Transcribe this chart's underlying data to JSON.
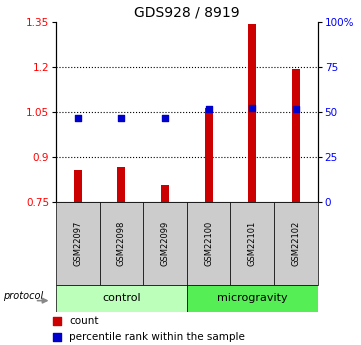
{
  "title": "GDS928 / 8919",
  "samples": [
    "GSM22097",
    "GSM22098",
    "GSM22099",
    "GSM22100",
    "GSM22101",
    "GSM22102"
  ],
  "groups": [
    "control",
    "control",
    "control",
    "microgravity",
    "microgravity",
    "microgravity"
  ],
  "bar_values": [
    0.855,
    0.865,
    0.805,
    1.065,
    1.345,
    1.195
  ],
  "dot_values": [
    1.03,
    1.03,
    1.03,
    1.06,
    1.065,
    1.06
  ],
  "ylim": [
    0.75,
    1.35
  ],
  "yticks_left": [
    0.75,
    0.9,
    1.05,
    1.2,
    1.35
  ],
  "yticks_right_values": [
    0,
    25,
    50,
    75,
    100
  ],
  "yticks_right_labels": [
    "0",
    "25",
    "50",
    "75",
    "100%"
  ],
  "bar_color": "#cc0000",
  "dot_color": "#0000cc",
  "control_color": "#bbffbb",
  "microgravity_color": "#55ee55",
  "label_bg_color": "#cccccc",
  "bar_width": 0.18,
  "dot_size": 20
}
